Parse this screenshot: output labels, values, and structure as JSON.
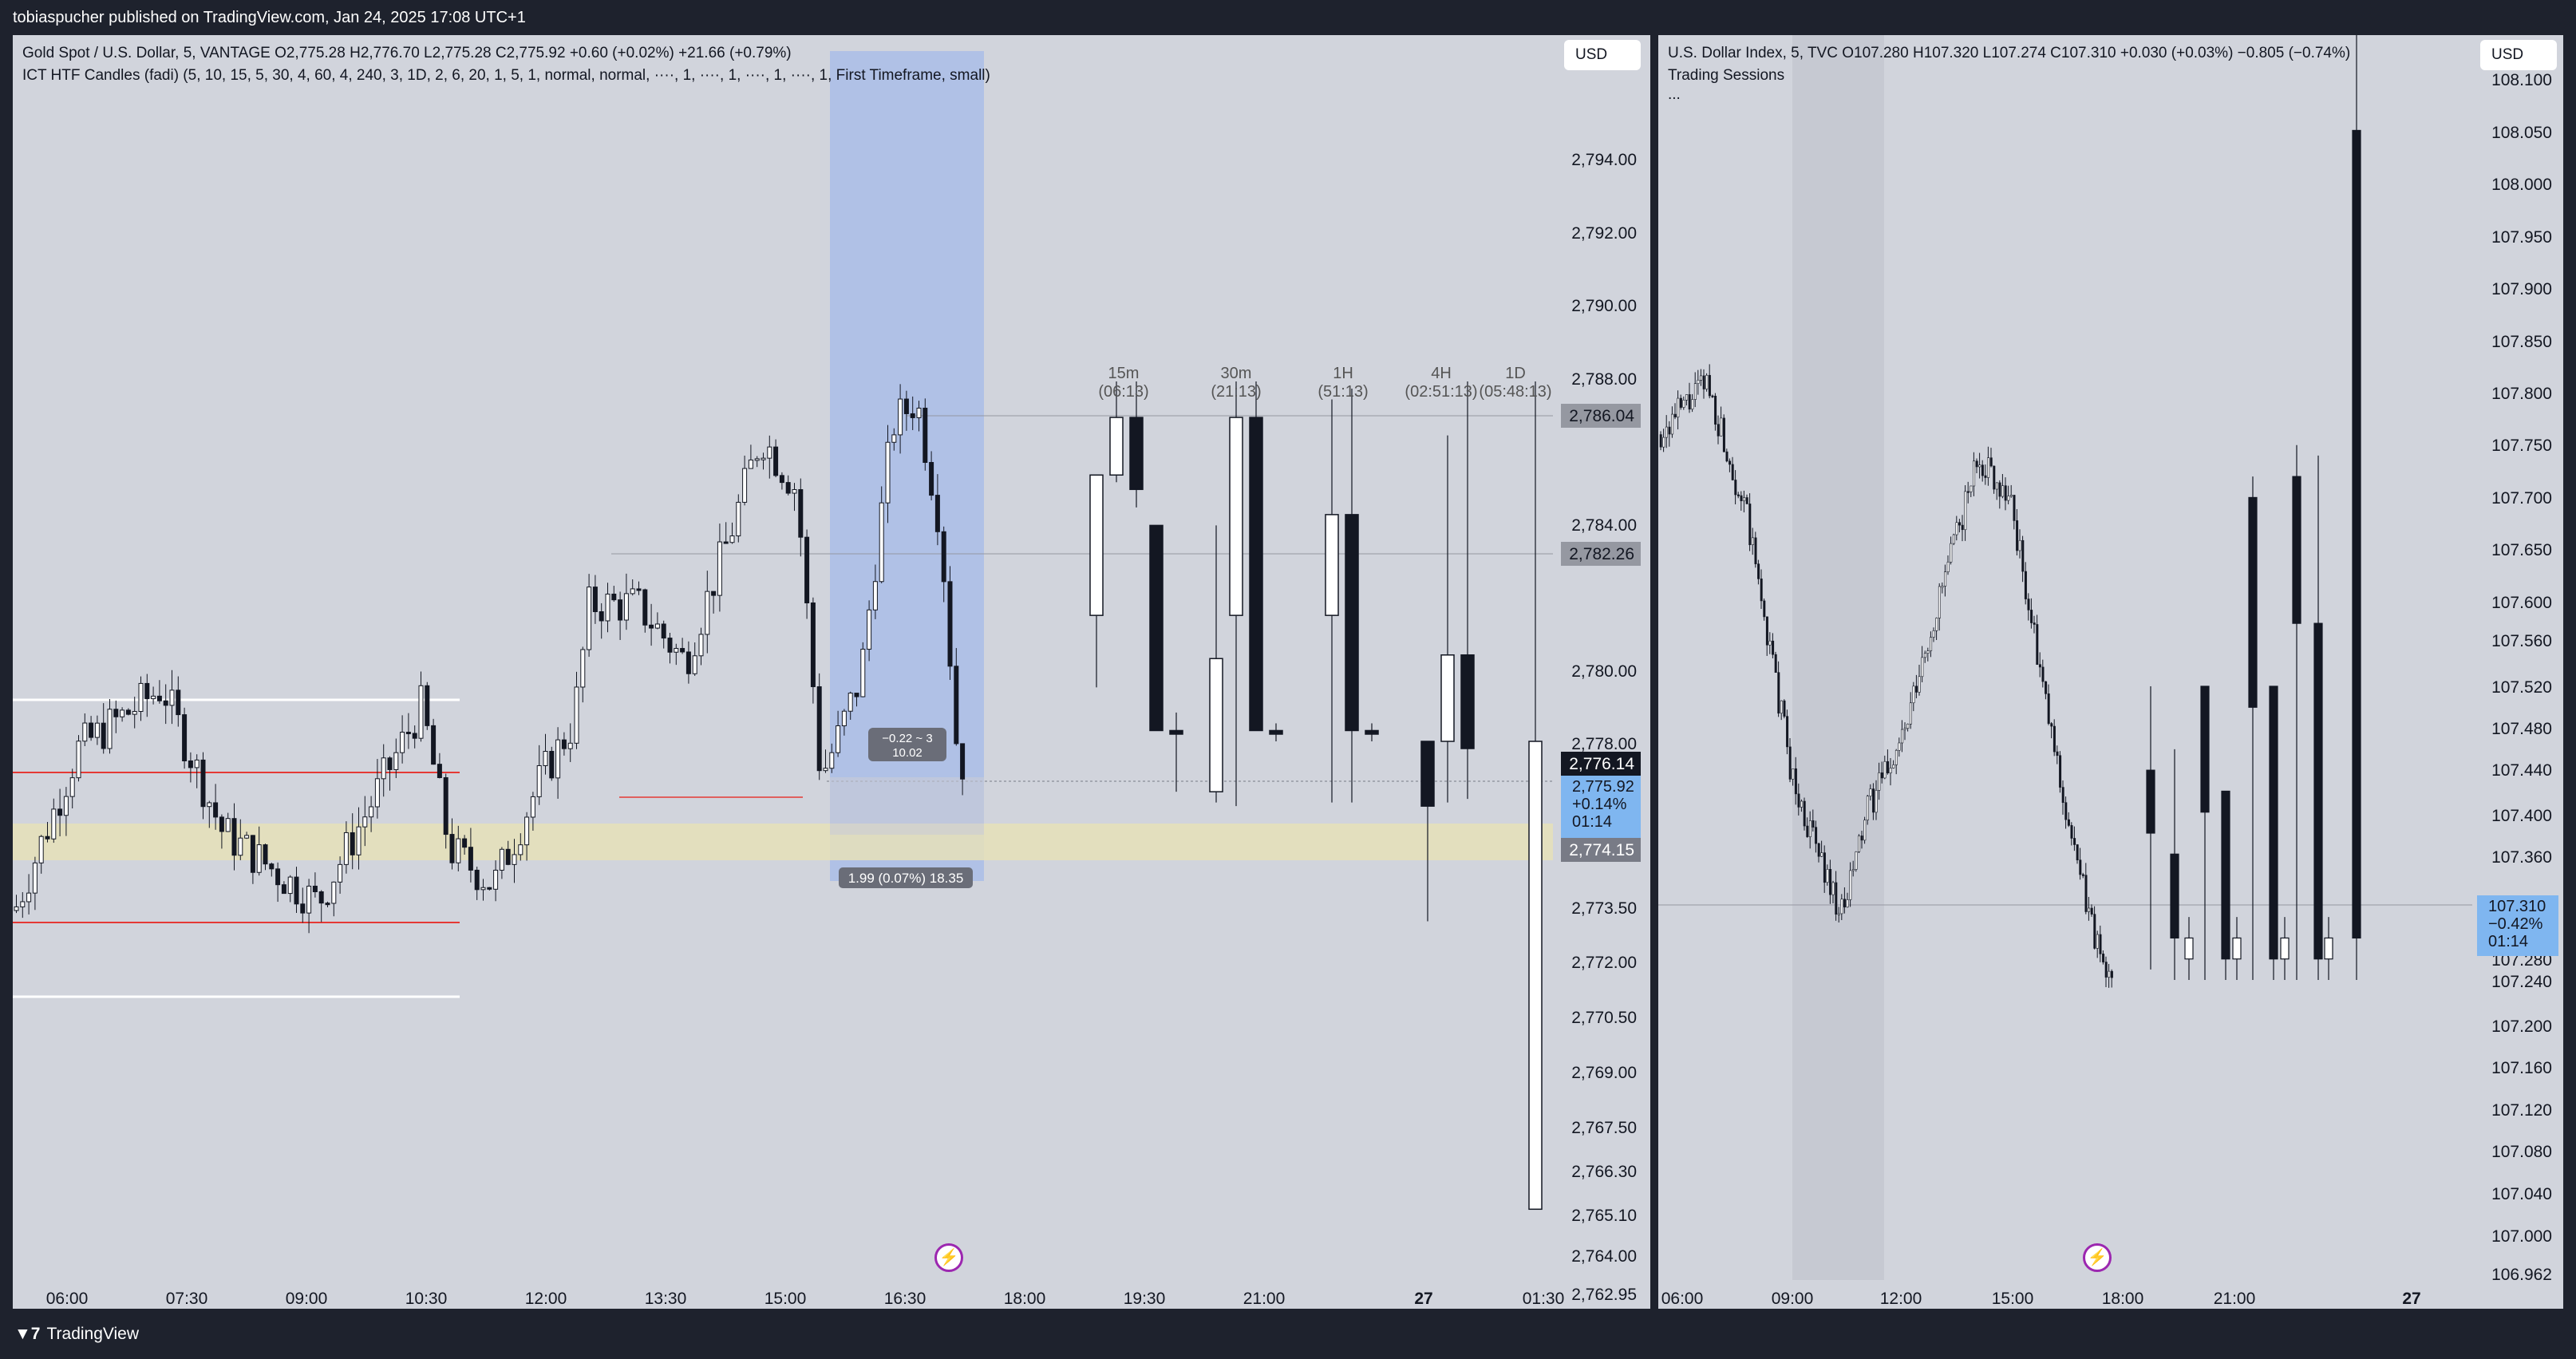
{
  "top_bar": {
    "published": "tobiaspucher published on TradingView.com, Jan 24, 2025 17:08 UTC+1"
  },
  "left_chart": {
    "header_line1": "Gold Spot / U.S. Dollar, 5, VANTAGE  O2,775.28  H2,776.70  L2,775.28  C2,775.92  +0.60 (+0.02%)  +21.66 (+0.79%)",
    "header_line2": "ICT HTF Candles (fadi) (5, 10, 15, 5, 30, 4, 60, 4, 240, 3, 1D, 2, 6, 20, 1, 5, 1, normal, normal, ····, 1, ····, 1, ····, 1, ····, 1, First Timeframe, small)",
    "currency": "USD",
    "y_ticks": [
      "2,794.00",
      "2,792.00",
      "2,790.00",
      "2,788.00",
      "2,784.00",
      "2,780.00",
      "2,778.00",
      "2,773.50",
      "2,772.00",
      "2,770.50",
      "2,769.00",
      "2,767.50",
      "2,766.30",
      "2,765.10",
      "2,764.00",
      "2,762.95"
    ],
    "price_labels": {
      "high": "2,786.04",
      "mid": "2,782.26",
      "last": "2,776.14",
      "current": "2,775.92",
      "current_change": "+0.14%",
      "countdown": "01:14",
      "low": "2,774.15"
    },
    "x_ticks": [
      "06:00",
      "07:30",
      "09:00",
      "10:30",
      "12:00",
      "13:30",
      "15:00",
      "16:30",
      "18:00",
      "19:30",
      "21:00",
      "27",
      "01:30"
    ],
    "htf_labels": [
      {
        "tf": "15m",
        "time": "(06:13)"
      },
      {
        "tf": "30m",
        "time": "(21:13)"
      },
      {
        "tf": "1H",
        "time": "(51:13)"
      },
      {
        "tf": "4H",
        "time": "(02:51:13)"
      },
      {
        "tf": "1D",
        "time": "(05:48:13)"
      }
    ],
    "measure_small_line1": "−0.22 ~ 3",
    "measure_small_line2": "10.02",
    "measure_range": "1.99 (0.07%) 18.35"
  },
  "right_chart": {
    "header_line1": "U.S. Dollar Index, 5, TVC  O107.280  H107.320  L107.274  C107.310  +0.030 (+0.03%)  −0.805 (−0.74%)",
    "header_line2": "Trading Sessions",
    "header_line3": "...",
    "currency": "USD",
    "y_ticks": [
      "108.100",
      "108.050",
      "108.000",
      "107.950",
      "107.900",
      "107.850",
      "107.800",
      "107.750",
      "107.700",
      "107.650",
      "107.600",
      "107.560",
      "107.520",
      "107.480",
      "107.440",
      "107.400",
      "107.360",
      "107.280",
      "107.240",
      "107.200",
      "107.160",
      "107.120",
      "107.080",
      "107.040",
      "107.000",
      "106.962"
    ],
    "price_labels": {
      "current": "107.310",
      "change": "−0.42%",
      "countdown": "01:14"
    },
    "x_ticks": [
      "06:00",
      "09:00",
      "12:00",
      "15:00",
      "18:00",
      "21:00",
      "27"
    ]
  },
  "footer": {
    "brand": "TradingView",
    "logo": "tradingview-logo-icon"
  },
  "colors": {
    "background": "#d1d4dc",
    "panel": "#1e222d",
    "selection": "#a8bce8",
    "zone": "#e6e0b8",
    "level_red": "#e53935",
    "price_tag": "#b2c8f5"
  }
}
